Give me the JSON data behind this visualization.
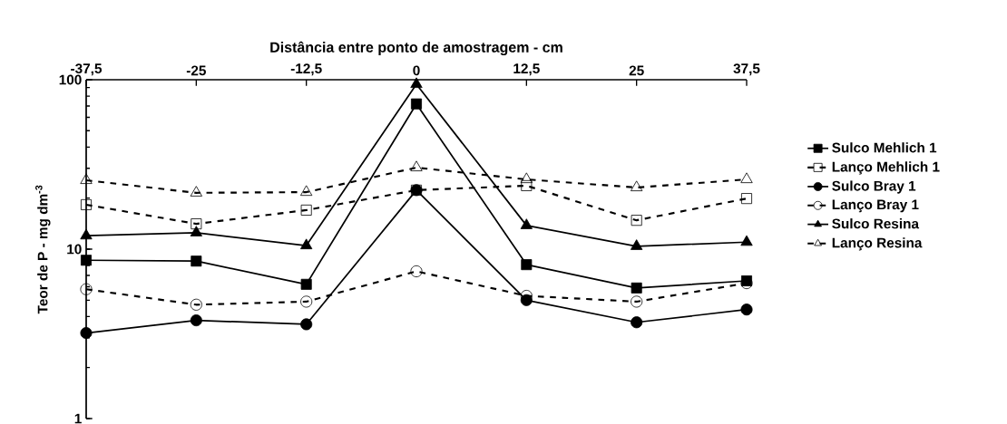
{
  "chart_data": {
    "type": "line",
    "xlabel": "Distância entre ponto de amostragem - cm",
    "ylabel": "Teor de P - mg dm$^{-3}$",
    "x": [
      -37.5,
      -25,
      -12.5,
      0,
      12.5,
      25,
      37.5
    ],
    "xlim": [
      -37.5,
      37.5
    ],
    "xticks": [
      {
        "value": -37.5,
        "label": "-37,5"
      },
      -25,
      {
        "value": -12.5,
        "label": "-12,5"
      },
      0,
      {
        "value": 12.5,
        "label": "12,5"
      },
      25,
      {
        "value": 37.5,
        "label": "37,5"
      }
    ],
    "ylim": [
      1,
      100
    ],
    "yticks": [
      1,
      10,
      100
    ],
    "log": true,
    "legend": "right",
    "series": [
      {
        "name": "Sulco Mehlich 1",
        "color": "#000000",
        "marker": "square",
        "line_style": "solid",
        "values": [
          8.6,
          8.5,
          6.2,
          72,
          8.1,
          5.9,
          6.5
        ]
      },
      {
        "name": "Lanço Mehlich 1",
        "color": "#000000",
        "marker": "square",
        "line_style": "dashed",
        "values": [
          18.3,
          14.1,
          17.0,
          22.3,
          23.7,
          14.8,
          19.9
        ]
      },
      {
        "name": "Sulco Bray 1",
        "color": "#000000",
        "marker": "circle",
        "line_style": "solid",
        "values": [
          3.2,
          3.8,
          3.6,
          22.3,
          5.0,
          3.7,
          4.4
        ]
      },
      {
        "name": "Lanço Bray 1",
        "color": "#000000",
        "marker": "circle",
        "line_style": "dashed",
        "values": [
          5.8,
          4.7,
          4.9,
          7.4,
          5.3,
          4.9,
          6.3
        ]
      },
      {
        "name": "Sulco Resina",
        "color": "#000000",
        "marker": "triangle",
        "line_style": "solid",
        "values": [
          12.0,
          12.5,
          10.5,
          94,
          13.8,
          10.4,
          11.0
        ]
      },
      {
        "name": "Lanço Resina",
        "color": "#000000",
        "marker": "triangle",
        "line_style": "dashed",
        "values": [
          25.5,
          21.5,
          21.7,
          30.3,
          25.8,
          23.1,
          25.8
        ]
      }
    ]
  }
}
